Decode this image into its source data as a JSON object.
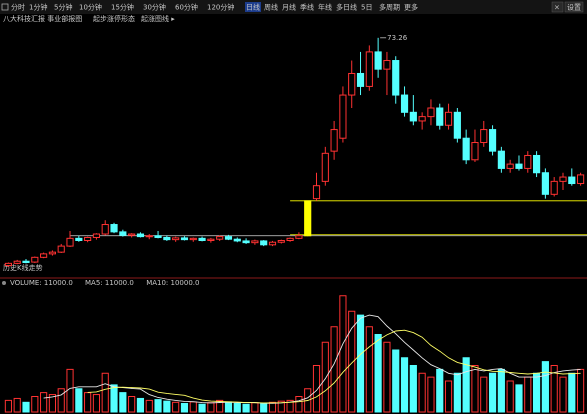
{
  "toolbar": {
    "periods": [
      "分时",
      "1分钟",
      "5分钟",
      "10分钟",
      "15分钟",
      "30分钟",
      "60分钟",
      "120分钟",
      "日线",
      "周线",
      "月线",
      "季线",
      "年线",
      "多日线",
      "5日",
      "多周期",
      "更多"
    ],
    "selected": 8,
    "right_buttons": [
      "设置",
      "×"
    ],
    "subtitle_items": [
      "八大科技汇报 事业部报图",
      "起步涨停形态",
      "起涨图线 ▸"
    ]
  },
  "chart_data": {
    "type": "candlestick",
    "high_annotation": 73.26,
    "panel_label": "历史K线走势",
    "open": [
      20.5,
      21.0,
      21.5,
      21.3,
      22.4,
      23.2,
      23.6,
      25.0,
      26.8,
      26.3,
      27.0,
      27.8,
      30.0,
      28.3,
      27.5,
      27.8,
      27.2,
      27.4,
      27.0,
      26.5,
      26.9,
      26.5,
      26.8,
      26.3,
      26.6,
      27.2,
      26.6,
      26.2,
      25.8,
      26.2,
      25.3,
      25.9,
      26.3,
      26.8,
      27.4,
      36.0,
      40.0,
      47.0,
      50.0,
      60.0,
      65.0,
      62.0,
      70.0,
      66.0,
      68.0,
      60.0,
      56.0,
      54.0,
      55.0,
      57.0,
      53.0,
      56.0,
      50.0,
      45.0,
      49.0,
      52.0,
      47.0,
      43.0,
      44.0,
      43.0,
      46.0,
      42.0,
      37.0,
      40.0,
      41.0,
      39.5
    ],
    "high": [
      21.2,
      21.8,
      22.0,
      22.6,
      23.5,
      24.0,
      25.5,
      28.5,
      27.4,
      27.2,
      28.0,
      31.0,
      30.4,
      28.8,
      28.0,
      28.2,
      27.8,
      28.5,
      27.5,
      27.2,
      27.3,
      27.0,
      27.2,
      26.9,
      27.5,
      27.6,
      27.0,
      26.8,
      26.5,
      26.4,
      26.2,
      26.5,
      27.0,
      28.2,
      35.5,
      42.0,
      48.0,
      54.0,
      62.0,
      68.0,
      70.0,
      71.5,
      73.26,
      70.0,
      69.0,
      62.0,
      60.0,
      56.0,
      59.0,
      58.0,
      58.0,
      57.0,
      52.0,
      52.0,
      54.0,
      53.0,
      48.0,
      45.0,
      46.0,
      47.0,
      47.0,
      43.0,
      41.0,
      42.0,
      43.0,
      42.0
    ],
    "low": [
      20.2,
      20.8,
      21.0,
      21.1,
      22.2,
      22.8,
      23.4,
      24.8,
      26.0,
      25.9,
      26.5,
      27.5,
      28.0,
      27.2,
      27.0,
      27.0,
      26.6,
      26.8,
      26.2,
      26.0,
      26.3,
      26.0,
      26.1,
      25.8,
      26.2,
      26.4,
      25.9,
      25.5,
      25.3,
      25.0,
      25.0,
      25.6,
      26.0,
      26.6,
      27.3,
      35.5,
      39.0,
      45.0,
      49.0,
      57.0,
      60.0,
      61.0,
      64.0,
      60.0,
      58.0,
      55.0,
      53.0,
      52.0,
      53.0,
      52.0,
      52.0,
      49.0,
      44.0,
      44.5,
      48.0,
      46.0,
      42.0,
      42.0,
      42.5,
      42.0,
      41.0,
      36.0,
      36.5,
      38.0,
      39.0,
      39.0
    ],
    "close": [
      21.0,
      21.5,
      21.2,
      22.4,
      23.2,
      23.6,
      25.0,
      26.8,
      26.3,
      27.0,
      27.8,
      30.0,
      28.3,
      27.5,
      27.8,
      27.2,
      27.4,
      27.0,
      26.5,
      26.9,
      26.5,
      26.8,
      26.3,
      26.6,
      27.2,
      26.6,
      26.2,
      25.8,
      26.2,
      25.3,
      25.9,
      26.3,
      26.8,
      27.4,
      35.5,
      39.0,
      46.5,
      52.0,
      60.0,
      65.0,
      62.0,
      70.0,
      66.0,
      68.0,
      60.0,
      56.0,
      54.0,
      55.0,
      57.0,
      53.0,
      56.0,
      50.0,
      45.0,
      49.0,
      52.0,
      47.0,
      43.0,
      44.0,
      43.0,
      46.0,
      42.0,
      37.0,
      40.0,
      41.0,
      39.5,
      41.5
    ],
    "volume": [
      3000,
      3500,
      2500,
      4000,
      5000,
      4500,
      6000,
      11000,
      6000,
      5000,
      4500,
      10000,
      7000,
      5000,
      4000,
      3500,
      3000,
      3200,
      2800,
      2500,
      2200,
      2600,
      2000,
      2400,
      3000,
      2600,
      2200,
      2000,
      2400,
      2100,
      2500,
      2800,
      3000,
      4000,
      6000,
      12000,
      18000,
      22000,
      30000,
      26000,
      25000,
      22000,
      20000,
      18000,
      16000,
      14000,
      12000,
      10000,
      9000,
      11000,
      8000,
      10000,
      14000,
      12000,
      9000,
      10000,
      11000,
      8000,
      7000,
      9000,
      10000,
      13000,
      12000,
      9000,
      10000,
      11000
    ],
    "ma5": [
      null,
      null,
      null,
      null,
      3600,
      3900,
      4400,
      6100,
      6500,
      6500,
      6500,
      7300,
      6500,
      6300,
      6100,
      5900,
      4500,
      3740,
      3300,
      3000,
      2740,
      2660,
      2420,
      2340,
      2440,
      2520,
      2440,
      2440,
      2440,
      2260,
      2240,
      2360,
      2560,
      2880,
      3660,
      5560,
      8600,
      12400,
      17600,
      21600,
      24200,
      25000,
      24600,
      22200,
      20200,
      18000,
      16000,
      14000,
      12200,
      11200,
      10000,
      9600,
      10400,
      11000,
      10600,
      11000,
      11200,
      10000,
      9000,
      9000,
      9000,
      9400,
      10200,
      10600,
      10800,
      11000
    ],
    "ma10": [
      null,
      null,
      null,
      null,
      null,
      null,
      null,
      null,
      null,
      5050,
      5200,
      5850,
      6300,
      6400,
      6300,
      6200,
      5900,
      5120,
      4800,
      4550,
      4320,
      3580,
      3080,
      2820,
      2720,
      2630,
      2550,
      2430,
      2390,
      2350,
      2380,
      2400,
      2500,
      2660,
      2960,
      3900,
      5480,
      7480,
      10240,
      12630,
      14880,
      16800,
      18500,
      19900,
      20900,
      21100,
      20500,
      19300,
      17200,
      15700,
      14000,
      12800,
      12200,
      11600,
      10900,
      10500,
      10400,
      10200,
      10000,
      9800,
      10000,
      10300,
      10100,
      9800,
      9900,
      10000
    ],
    "volume_legend": [
      "VOLUME: 11000.0",
      "MA5: 11000.0",
      "MA10: 10000.0"
    ],
    "ylim": [
      19,
      76
    ],
    "vol_ylim": [
      0,
      32000
    ],
    "up_color": "#ff3232",
    "down_color": "#54ffff",
    "highlight_index": 34,
    "highlight_color": "#ffff00",
    "ma5_color": "#e8e8e8",
    "ma10_color": "#ffff66"
  }
}
